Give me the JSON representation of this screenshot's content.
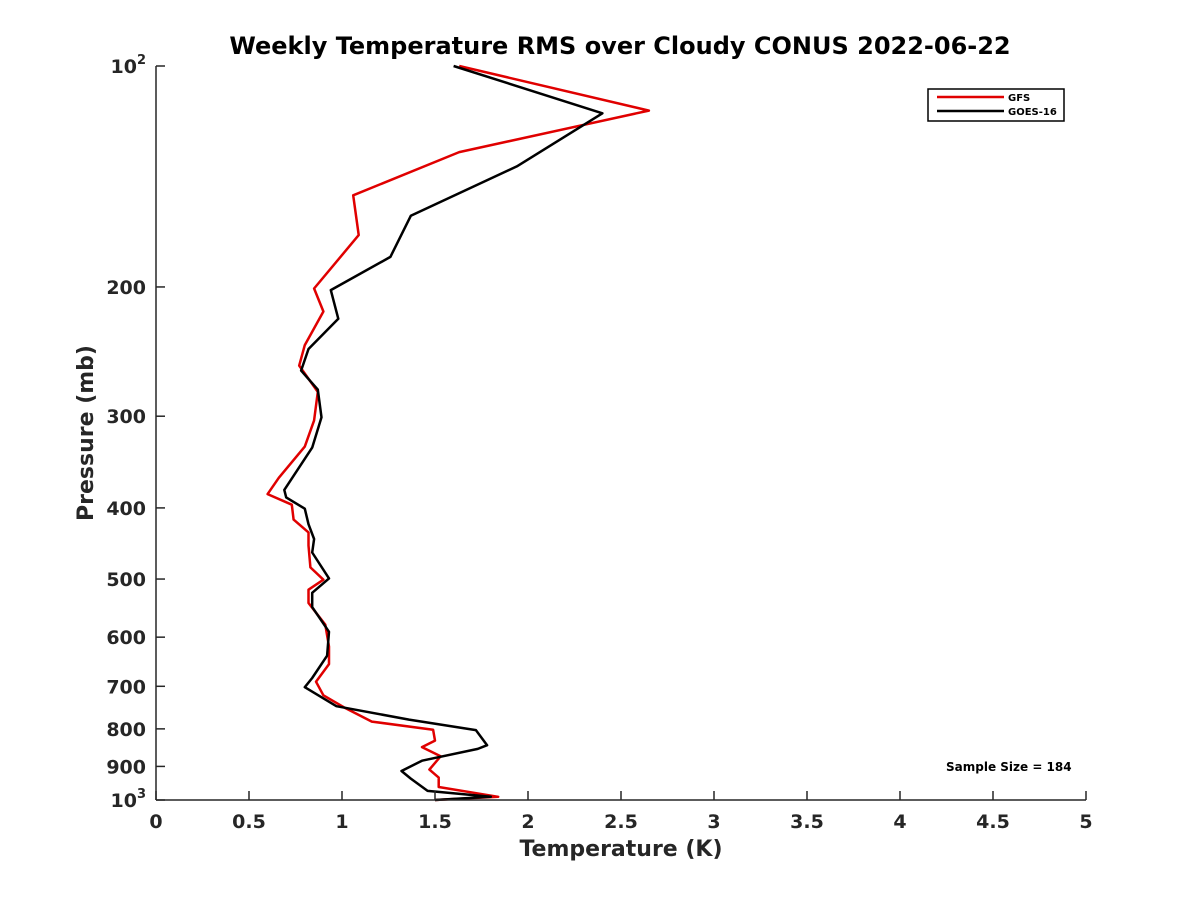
{
  "chart_data": {
    "type": "line",
    "title": "Weekly Temperature RMS over Cloudy CONUS 2022-06-22",
    "xlabel": "Temperature (K)",
    "ylabel": "Pressure (mb)",
    "xlim": [
      0,
      5
    ],
    "ylim": [
      100,
      1000
    ],
    "yscale": "log",
    "yreversed": true,
    "grid": false,
    "legend": "top-right",
    "xticks": [
      0,
      0.5,
      1,
      1.5,
      2,
      2.5,
      3,
      3.5,
      4,
      4.5,
      5
    ],
    "xtick_labels": [
      "0",
      "0.5",
      "1",
      "1.5",
      "2",
      "2.5",
      "3",
      "3.5",
      "4",
      "4.5",
      "5"
    ],
    "yticks": [
      {
        "value": 100,
        "base": "10",
        "exp": "2"
      },
      {
        "value": 200,
        "label": "200"
      },
      {
        "value": 300,
        "label": "300"
      },
      {
        "value": 400,
        "label": "400"
      },
      {
        "value": 500,
        "label": "500"
      },
      {
        "value": 600,
        "label": "600"
      },
      {
        "value": 700,
        "label": "700"
      },
      {
        "value": 800,
        "label": "800"
      },
      {
        "value": 900,
        "label": "900"
      },
      {
        "value": 1000,
        "base": "10",
        "exp": "3"
      }
    ],
    "annotation": "Sample Size = 184",
    "series": [
      {
        "name": "GFS",
        "color": "#e00000",
        "points": [
          [
            1.63,
            100
          ],
          [
            2.65,
            115
          ],
          [
            1.63,
            131
          ],
          [
            1.06,
            150
          ],
          [
            1.09,
            170
          ],
          [
            0.85,
            201
          ],
          [
            0.9,
            216
          ],
          [
            0.8,
            240
          ],
          [
            0.77,
            256
          ],
          [
            0.87,
            278
          ],
          [
            0.85,
            304
          ],
          [
            0.8,
            330
          ],
          [
            0.66,
            364
          ],
          [
            0.6,
            383
          ],
          [
            0.73,
            396
          ],
          [
            0.74,
            415
          ],
          [
            0.82,
            432
          ],
          [
            0.82,
            450
          ],
          [
            0.83,
            482
          ],
          [
            0.9,
            501
          ],
          [
            0.82,
            517
          ],
          [
            0.82,
            539
          ],
          [
            0.91,
            577
          ],
          [
            0.93,
            618
          ],
          [
            0.93,
            653
          ],
          [
            0.86,
            690
          ],
          [
            0.9,
            720
          ],
          [
            1.02,
            750
          ],
          [
            1.16,
            782
          ],
          [
            1.49,
            802
          ],
          [
            1.5,
            830
          ],
          [
            1.43,
            847
          ],
          [
            1.53,
            872
          ],
          [
            1.47,
            909
          ],
          [
            1.52,
            932
          ],
          [
            1.52,
            960
          ],
          [
            1.84,
            990
          ],
          [
            1.5,
            1000
          ]
        ]
      },
      {
        "name": "GOES-16",
        "color": "#000000",
        "points": [
          [
            1.6,
            100
          ],
          [
            2.4,
            116
          ],
          [
            1.94,
            137
          ],
          [
            1.37,
            160
          ],
          [
            1.26,
            182
          ],
          [
            0.94,
            202
          ],
          [
            0.98,
            221
          ],
          [
            0.82,
            243
          ],
          [
            0.78,
            260
          ],
          [
            0.87,
            276
          ],
          [
            0.89,
            301
          ],
          [
            0.84,
            331
          ],
          [
            0.69,
            378
          ],
          [
            0.7,
            387
          ],
          [
            0.8,
            401
          ],
          [
            0.82,
            421
          ],
          [
            0.85,
            441
          ],
          [
            0.84,
            460
          ],
          [
            0.93,
            499
          ],
          [
            0.84,
            522
          ],
          [
            0.84,
            546
          ],
          [
            0.93,
            590
          ],
          [
            0.92,
            636
          ],
          [
            0.84,
            682
          ],
          [
            0.8,
            702
          ],
          [
            0.97,
            745
          ],
          [
            1.36,
            777
          ],
          [
            1.72,
            803
          ],
          [
            1.78,
            842
          ],
          [
            1.73,
            852
          ],
          [
            1.43,
            884
          ],
          [
            1.32,
            913
          ],
          [
            1.37,
            935
          ],
          [
            1.46,
            972
          ],
          [
            1.8,
            990
          ],
          [
            1.5,
            1000
          ]
        ]
      }
    ]
  }
}
